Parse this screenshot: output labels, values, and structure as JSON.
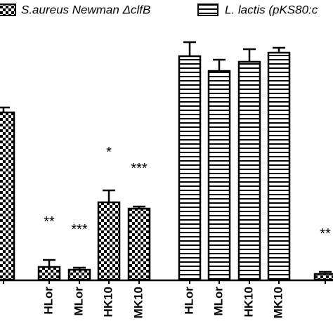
{
  "chart_data": {
    "type": "bar",
    "categories": [
      null,
      "HLor",
      "MLor",
      "HK10",
      "MK10",
      "HLor",
      "MLor",
      "HK10",
      "MK10",
      null
    ],
    "series": [
      {
        "name": "S.aureus Newman ΔclfB",
        "color": "#000000",
        "pattern": "checker",
        "values": [
          238,
          18,
          14,
          110,
          101,
          null,
          null,
          null,
          null,
          8
        ],
        "errors": [
          7,
          10,
          3,
          17,
          3,
          null,
          null,
          null,
          null,
          3
        ]
      },
      {
        "name": "L. lactis (pKS80:c",
        "color": "#000000",
        "pattern": "stripes",
        "values": [
          null,
          null,
          null,
          null,
          null,
          318,
          297,
          310,
          323,
          null
        ],
        "errors": [
          null,
          null,
          null,
          null,
          null,
          20,
          16,
          18,
          7,
          null
        ]
      }
    ],
    "annotations": [
      null,
      "**",
      "***",
      "*",
      "***",
      null,
      null,
      null,
      null,
      "**"
    ]
  }
}
